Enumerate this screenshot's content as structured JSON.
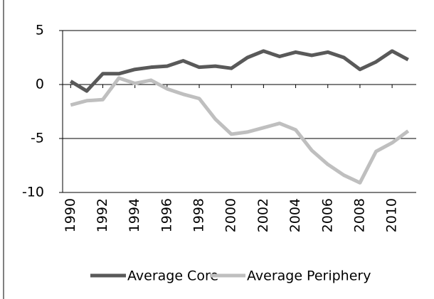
{
  "chart_data": {
    "type": "line",
    "x": [
      1990,
      1991,
      1992,
      1993,
      1994,
      1995,
      1996,
      1997,
      1998,
      1999,
      2000,
      2001,
      2002,
      2003,
      2004,
      2005,
      2006,
      2007,
      2008,
      2009,
      2010,
      2011
    ],
    "series": [
      {
        "name": "Average Core",
        "color": "#595959",
        "values": [
          0.3,
          -0.6,
          1.0,
          1.0,
          1.4,
          1.6,
          1.7,
          2.2,
          1.6,
          1.7,
          1.5,
          2.5,
          3.1,
          2.6,
          3.0,
          2.7,
          3.0,
          2.5,
          1.4,
          2.1,
          3.1,
          2.3
        ]
      },
      {
        "name": "Average Periphery",
        "color": "#bfbfbf",
        "values": [
          -1.9,
          -1.5,
          -1.4,
          0.6,
          0.1,
          0.4,
          -0.4,
          -0.9,
          -1.3,
          -3.2,
          -4.6,
          -4.4,
          -4.0,
          -3.6,
          -4.2,
          -6.1,
          -7.4,
          -8.4,
          -9.1,
          -6.2,
          -5.4,
          -4.3
        ]
      }
    ],
    "xlim": [
      1989.5,
      2011.5
    ],
    "xticks": [
      1990,
      1992,
      1994,
      1996,
      1998,
      2000,
      2002,
      2004,
      2006,
      2008,
      2010
    ],
    "ylim": [
      -10,
      5
    ],
    "yticks": [
      5,
      0,
      -5,
      -10
    ],
    "grid": true,
    "legend": "bottom"
  }
}
